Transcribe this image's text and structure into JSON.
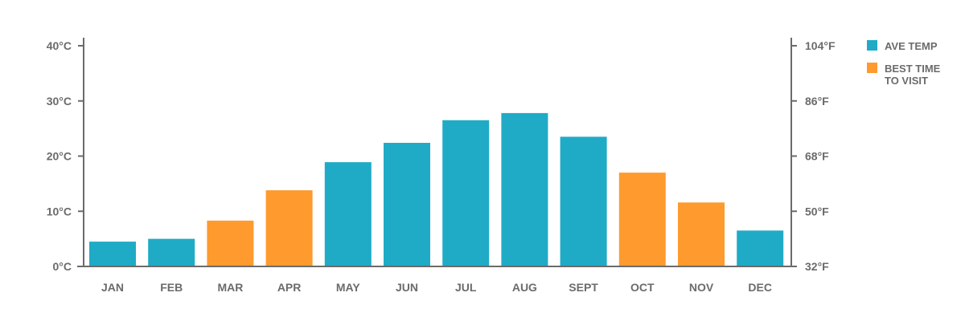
{
  "chart_data": {
    "type": "bar",
    "categories": [
      "JAN",
      "FEB",
      "MAR",
      "APR",
      "MAY",
      "JUN",
      "JUL",
      "AUG",
      "SEPT",
      "OCT",
      "NOV",
      "DEC"
    ],
    "values": [
      4.5,
      5,
      8.3,
      13.8,
      18.9,
      22.4,
      26.5,
      27.8,
      23.5,
      17,
      11.6,
      6.5
    ],
    "series": [
      {
        "name": "AVE TEMP",
        "color": "#1fabc6"
      },
      {
        "name": "BEST TIME TO VISIT",
        "color": "#ff9a2e"
      }
    ],
    "highlight": [
      false,
      false,
      true,
      true,
      false,
      false,
      false,
      false,
      false,
      true,
      true,
      false
    ],
    "title": "",
    "xlabel": "",
    "ylabel": "",
    "ylim": [
      0,
      40
    ],
    "y_ticks_left": [
      "0°C",
      "10°C",
      "20°C",
      "30°C",
      "40°C"
    ],
    "y_ticks_right": [
      "32°F",
      "50°F",
      "68°F",
      "86°F",
      "104°F"
    ],
    "grid": false,
    "legend": {
      "position": "top-right",
      "items": [
        {
          "lines": [
            "AVE TEMP"
          ],
          "color": "#1fabc6"
        },
        {
          "lines": [
            "BEST TIME",
            "TO VISIT"
          ],
          "color": "#ff9a2e"
        }
      ]
    }
  }
}
